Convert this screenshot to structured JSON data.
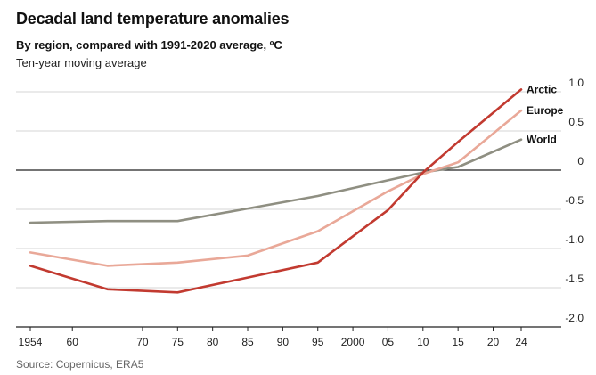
{
  "header": {
    "title": "Decadal land temperature anomalies",
    "subtitle": "By region, compared with 1991-2020 average, ºC",
    "note": "Ten-year moving average"
  },
  "footer": {
    "source": "Source: Copernicus, ERA5"
  },
  "chart_data": {
    "type": "line",
    "title": "Decadal land temperature anomalies",
    "xlabel": "",
    "ylabel": "",
    "xlim": [
      1953,
      2027
    ],
    "ylim": [
      -2.0,
      1.0
    ],
    "x_ticks": [
      1954,
      1960,
      1970,
      1975,
      1980,
      1985,
      1990,
      1995,
      2000,
      2005,
      2010,
      2015,
      2020,
      2024
    ],
    "x_tick_labels": [
      "1954",
      "60",
      "70",
      "75",
      "80",
      "85",
      "90",
      "95",
      "2000",
      "05",
      "10",
      "15",
      "20",
      "24"
    ],
    "y_ticks": [
      1.0,
      0.5,
      0,
      -0.5,
      -1.0,
      -1.5,
      -2.0
    ],
    "y_tick_labels": [
      "1.0",
      "0.5",
      "0",
      "-0.5",
      "-1.0",
      "-1.5",
      "-2.0"
    ],
    "series": [
      {
        "name": "World",
        "color": "#8f8f82",
        "x": [
          1954,
          1965,
          1975,
          1985,
          1995,
          2005,
          2010,
          2015,
          2024
        ],
        "values": [
          -0.67,
          -0.65,
          -0.65,
          -0.49,
          -0.33,
          -0.13,
          -0.03,
          0.04,
          0.39
        ]
      },
      {
        "name": "Europe",
        "color": "#e9a898",
        "x": [
          1954,
          1965,
          1975,
          1985,
          1995,
          2005,
          2010,
          2015,
          2024
        ],
        "values": [
          -1.05,
          -1.22,
          -1.18,
          -1.09,
          -0.78,
          -0.27,
          -0.05,
          0.1,
          0.76
        ]
      },
      {
        "name": "Arctic",
        "color": "#c23a30",
        "x": [
          1954,
          1965,
          1975,
          1985,
          1995,
          2005,
          2010,
          2015,
          2024
        ],
        "values": [
          -1.22,
          -1.52,
          -1.56,
          -1.37,
          -1.18,
          -0.51,
          -0.03,
          0.36,
          1.03
        ]
      }
    ],
    "legend": "inline-right"
  }
}
